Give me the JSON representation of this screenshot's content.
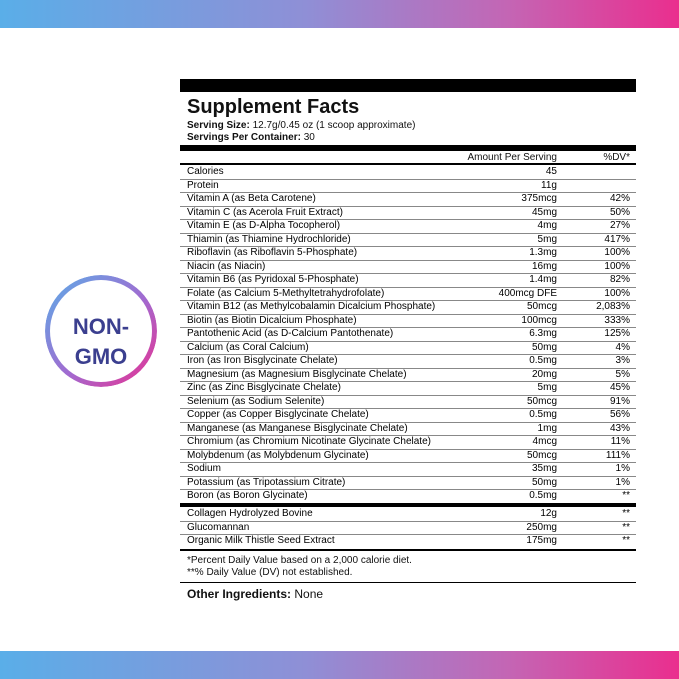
{
  "badge": {
    "lines": [
      "NON-",
      "GMO"
    ]
  },
  "header": {
    "title": "Supplement Facts",
    "serving_size": {
      "label": "Serving Size:",
      "value": "12.7g/0.45 oz (1 scoop approximate)"
    },
    "servings_per_container": {
      "label": "Servings Per Container:",
      "value": "30"
    }
  },
  "table": {
    "columns": [
      "Amount Per Serving",
      "%DV*"
    ],
    "groups": [
      [
        [
          "Calories",
          "45"
        ],
        [
          "Protein",
          "11g"
        ],
        [
          "Vitamin A (as Beta Carotene)",
          "375mcg",
          "42%"
        ],
        [
          "Vitamin C (as Acerola Fruit Extract)",
          "45mg",
          "50%"
        ],
        [
          "Vitamin E (as D-Alpha Tocopherol)",
          "4mg",
          "27%"
        ],
        [
          "Thiamin (as Thiamine Hydrochloride)",
          "5mg",
          "417%"
        ],
        [
          "Riboflavin (as Riboflavin 5-Phosphate)",
          "1.3mg",
          "100%"
        ],
        [
          "Niacin (as Niacin)",
          "16mg",
          "100%"
        ],
        [
          "Vitamin B6 (as Pyridoxal 5-Phosphate)",
          "1.4mg",
          "82%"
        ],
        [
          "Folate (as Calcium 5-Methyltetrahydrofolate)",
          "400mcg DFE",
          "100%"
        ],
        [
          "Vitamin B12 (as Methylcobalamin Dicalcium Phosphate)",
          "50mcg",
          "2,083%"
        ],
        [
          "Biotin (as Biotin Dicalcium Phosphate)",
          "100mcg",
          "333%"
        ],
        [
          "Pantothenic Acid (as D-Calcium Pantothenate)",
          "6.3mg",
          "125%"
        ],
        [
          "Calcium (as Coral Calcium)",
          "50mg",
          "4%"
        ],
        [
          "Iron (as Iron Bisglycinate Chelate)",
          "0.5mg",
          "3%"
        ],
        [
          "Magnesium (as Magnesium Bisglycinate Chelate)",
          "20mg",
          "5%"
        ],
        [
          "Zinc (as Zinc Bisglycinate Chelate)",
          "5mg",
          "45%"
        ],
        [
          "Selenium (as Sodium Selenite)",
          "50mcg",
          "91%"
        ],
        [
          "Copper (as Copper Bisglycinate Chelate)",
          "0.5mg",
          "56%"
        ],
        [
          "Manganese (as Manganese Bisglycinate Chelate)",
          "1mg",
          "43%"
        ],
        [
          "Chromium (as Chromium Nicotinate Glycinate Chelate)",
          "4mcg",
          "11%"
        ],
        [
          "Molybdenum (as Molybdenum Glycinate)",
          "50mcg",
          "111%"
        ],
        [
          "Sodium",
          "35mg",
          "1%"
        ],
        [
          "Potassium (as Tripotassium Citrate)",
          "50mg",
          "1%"
        ],
        [
          "Boron (as Boron Glycinate)",
          "0.5mg",
          "**"
        ]
      ],
      [
        [
          "Collagen Hydrolyzed Bovine",
          "12g",
          "**"
        ],
        [
          "Glucomannan",
          "250mg",
          "**"
        ],
        [
          "Organic Milk Thistle Seed Extract",
          "175mg",
          "**"
        ]
      ]
    ]
  },
  "footnotes": [
    "*Percent Daily Value based on a 2,000 calorie diet.",
    "**% Daily Value (DV) not established."
  ],
  "other_ingredients": {
    "label": "Other Ingredients:",
    "value": "None"
  }
}
